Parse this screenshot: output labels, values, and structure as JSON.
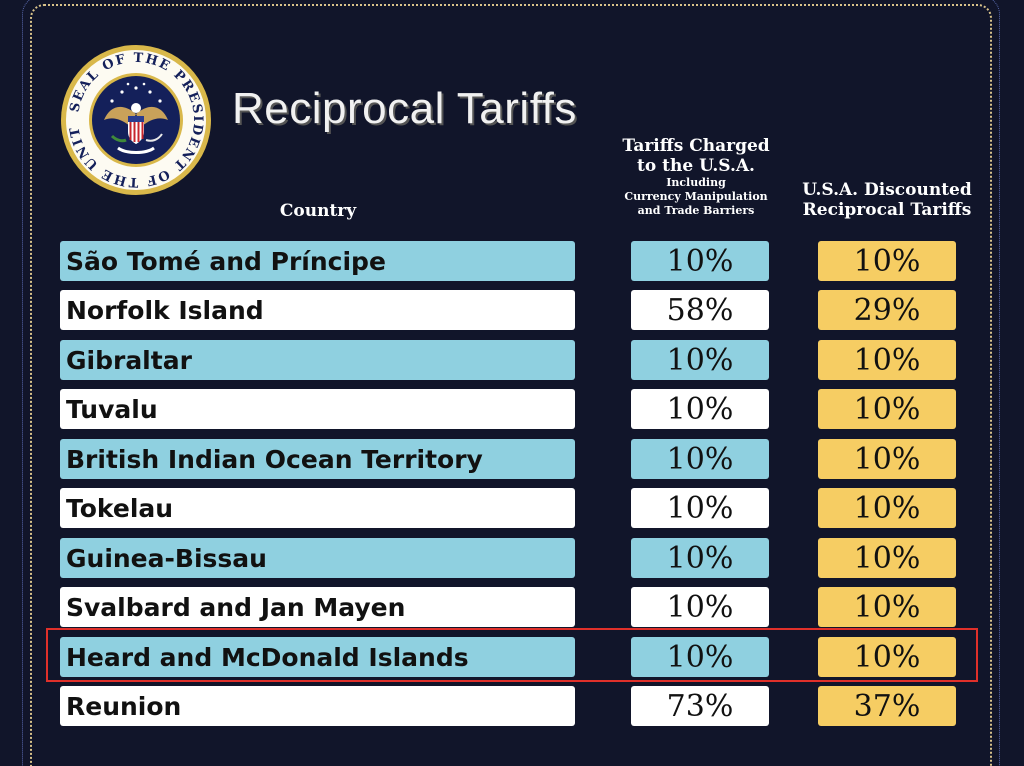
{
  "seal": {
    "ring_text": "SEAL OF THE PRESIDENT OF THE UNITED STATES",
    "colors": {
      "gold": "#d9b84a",
      "navy": "#14205a",
      "white": "#ffffff"
    }
  },
  "title": "Reciprocal Tariffs",
  "headers": {
    "country": "Country",
    "charged_line1": "Tariffs Charged",
    "charged_line2": "to the U.S.A.",
    "charged_sub1": "Including",
    "charged_sub2": "Currency Manipulation",
    "charged_sub3": "and Trade Barriers",
    "discounted_line1": "U.S.A. Discounted",
    "discounted_line2": "Reciprocal Tariffs"
  },
  "rows": [
    {
      "country": "São Tomé and Príncipe",
      "charged": "10%",
      "discounted": "10%"
    },
    {
      "country": "Norfolk Island",
      "charged": "58%",
      "discounted": "29%"
    },
    {
      "country": "Gibraltar",
      "charged": "10%",
      "discounted": "10%"
    },
    {
      "country": "Tuvalu",
      "charged": "10%",
      "discounted": "10%"
    },
    {
      "country": "British Indian Ocean Territory",
      "charged": "10%",
      "discounted": "10%"
    },
    {
      "country": "Tokelau",
      "charged": "10%",
      "discounted": "10%"
    },
    {
      "country": "Guinea-Bissau",
      "charged": "10%",
      "discounted": "10%"
    },
    {
      "country": "Svalbard and Jan Mayen",
      "charged": "10%",
      "discounted": "10%"
    },
    {
      "country": "Heard and McDonald Islands",
      "charged": "10%",
      "discounted": "10%"
    },
    {
      "country": "Reunion",
      "charged": "73%",
      "discounted": "37%"
    }
  ],
  "colors": {
    "background": "#11152a",
    "row_blue": "#8fd0e0",
    "row_white": "#ffffff",
    "discount_gold": "#f6cd63",
    "highlight_red": "#e0302a"
  }
}
